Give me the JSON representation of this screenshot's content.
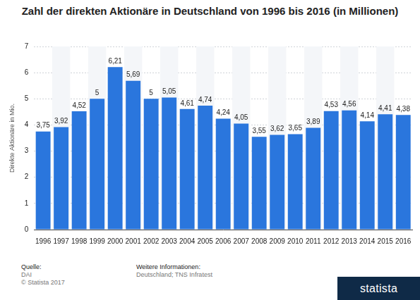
{
  "chart_data": {
    "type": "bar",
    "title": "Zahl der direkten Aktionäre in Deutschland von 1996 bis 2016 (in Millionen)",
    "y_label": "Direkte Aktionäre in Mio.",
    "categories": [
      "1996",
      "1997",
      "1998",
      "1999",
      "2000",
      "2001",
      "2002",
      "2003",
      "2004",
      "2005",
      "2006",
      "2007",
      "2008",
      "2009",
      "2010",
      "2011",
      "2012",
      "2013",
      "2014",
      "2015",
      "2016"
    ],
    "values": [
      3.75,
      3.92,
      4.52,
      5,
      6.21,
      5.69,
      5,
      5.05,
      4.61,
      4.74,
      4.24,
      4.05,
      3.55,
      3.62,
      3.65,
      3.89,
      4.53,
      4.56,
      4.14,
      4.41,
      4.38
    ],
    "value_labels": [
      "3,75",
      "3,92",
      "4,52",
      "5",
      "6,21",
      "5,69",
      "5",
      "5,05",
      "4,61",
      "4,74",
      "4,24",
      "4,05",
      "3,55",
      "3,62",
      "3,65",
      "3,89",
      "4,53",
      "4,56",
      "4,14",
      "4,41",
      "4,38"
    ],
    "color": "#2a76dd",
    "ylim": [
      0,
      7
    ],
    "yticks": [
      0,
      1,
      2,
      3,
      4,
      5,
      6,
      7
    ],
    "grid": true,
    "data_labels": true,
    "source": {
      "heading": "Quelle:",
      "lines": [
        "DAI",
        "© Statista 2017"
      ]
    },
    "info": {
      "heading": "Weitere Informationen:",
      "lines": [
        "Deutschland; TNS Infratest"
      ]
    },
    "logo": "statista"
  }
}
